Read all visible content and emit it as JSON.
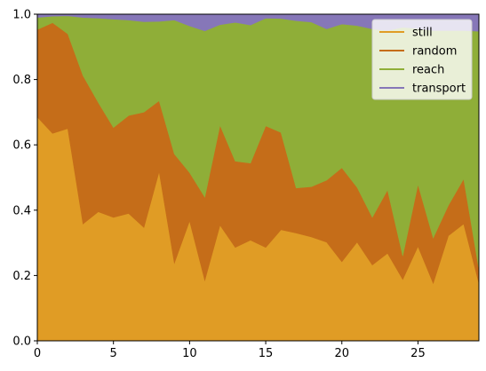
{
  "chart_data": {
    "type": "area",
    "stacked": true,
    "title": "",
    "xlabel": "",
    "ylabel": "",
    "x": [
      0,
      1,
      2,
      3,
      4,
      5,
      6,
      7,
      8,
      9,
      10,
      11,
      12,
      13,
      14,
      15,
      16,
      17,
      18,
      19,
      20,
      21,
      22,
      23,
      24,
      25,
      26,
      27,
      28,
      29
    ],
    "xlim": [
      0,
      29
    ],
    "ylim": [
      0,
      1.0
    ],
    "xticks": [
      0,
      5,
      10,
      15,
      20,
      25
    ],
    "xtick_labels": [
      "0",
      "5",
      "10",
      "15",
      "20",
      "25"
    ],
    "yticks": [
      0.0,
      0.2,
      0.4,
      0.6,
      0.8,
      1.0
    ],
    "ytick_labels": [
      "0.0",
      "0.2",
      "0.4",
      "0.6",
      "0.8",
      "1.0"
    ],
    "grid": false,
    "legend_position": "top-right",
    "series": [
      {
        "name": "still",
        "color": "#e09c25",
        "values": [
          0.685,
          0.635,
          0.65,
          0.358,
          0.395,
          0.378,
          0.39,
          0.347,
          0.518,
          0.238,
          0.367,
          0.185,
          0.354,
          0.286,
          0.308,
          0.286,
          0.34,
          0.33,
          0.318,
          0.302,
          0.242,
          0.302,
          0.232,
          0.268,
          0.188,
          0.289,
          0.176,
          0.322,
          0.358,
          0.176
        ]
      },
      {
        "name": "random",
        "color": "#c56d19",
        "values": [
          0.268,
          0.339,
          0.29,
          0.454,
          0.335,
          0.275,
          0.3,
          0.353,
          0.217,
          0.334,
          0.148,
          0.255,
          0.306,
          0.264,
          0.236,
          0.372,
          0.298,
          0.138,
          0.154,
          0.19,
          0.288,
          0.168,
          0.146,
          0.194,
          0.072,
          0.19,
          0.139,
          0.093,
          0.138,
          0.044
        ]
      },
      {
        "name": "reach",
        "color": "#8fae38",
        "values": [
          0.037,
          0.02,
          0.055,
          0.178,
          0.258,
          0.332,
          0.292,
          0.277,
          0.243,
          0.41,
          0.449,
          0.509,
          0.308,
          0.425,
          0.423,
          0.33,
          0.349,
          0.512,
          0.504,
          0.463,
          0.44,
          0.495,
          0.577,
          0.488,
          0.7,
          0.477,
          0.635,
          0.535,
          0.454,
          0.728
        ]
      },
      {
        "name": "transport",
        "color": "#8677b8",
        "values": [
          0.01,
          0.006,
          0.005,
          0.01,
          0.012,
          0.015,
          0.018,
          0.023,
          0.022,
          0.018,
          0.036,
          0.051,
          0.032,
          0.025,
          0.033,
          0.012,
          0.013,
          0.02,
          0.024,
          0.045,
          0.03,
          0.035,
          0.045,
          0.05,
          0.04,
          0.044,
          0.05,
          0.05,
          0.05,
          0.052
        ]
      }
    ]
  }
}
